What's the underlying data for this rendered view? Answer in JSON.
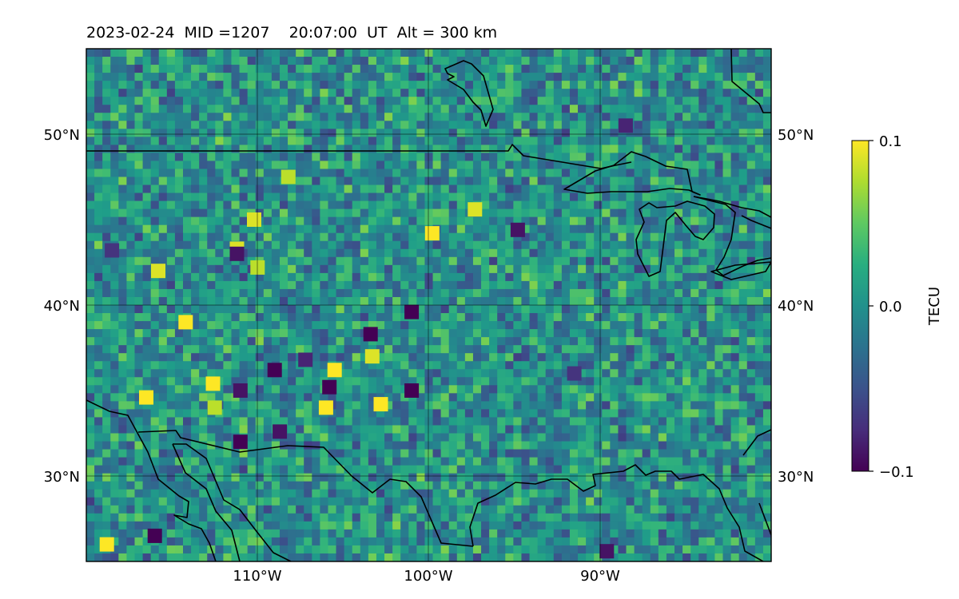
{
  "title": "2023-02-24  MID =1207    20:07:00  UT  Alt = 300 km",
  "chart_data": {
    "type": "heatmap",
    "title": "2023-02-24  MID =1207    20:07:00  UT  Alt = 300 km",
    "map": {
      "projection": "equirectangular",
      "lon_range": [
        -120,
        -80
      ],
      "lat_range": [
        25,
        55
      ],
      "lon_ticks": [
        {
          "value": -110,
          "label": "110°W"
        },
        {
          "value": -100,
          "label": "100°W"
        },
        {
          "value": -90,
          "label": "90°W"
        }
      ],
      "lat_ticks": [
        {
          "value": 50,
          "label": "50°N"
        },
        {
          "value": 40,
          "label": "40°N"
        },
        {
          "value": 30,
          "label": "30°N"
        }
      ],
      "grid": true
    },
    "colorbar": {
      "label": "TECU",
      "colormap": "viridis",
      "range": [
        -0.1,
        0.1
      ],
      "ticks": [
        {
          "value": 0.1,
          "label": "0.1"
        },
        {
          "value": 0.0,
          "label": "0.0"
        },
        {
          "value": -0.1,
          "label": "−0.1"
        }
      ]
    },
    "features": {
      "positive_patches": [
        {
          "lon": -110.2,
          "lat": 45.0,
          "value": 0.09
        },
        {
          "lon": -110.0,
          "lat": 42.2,
          "value": 0.08
        },
        {
          "lon": -111.2,
          "lat": 43.3,
          "value": 0.09
        },
        {
          "lon": -115.8,
          "lat": 42.0,
          "value": 0.09
        },
        {
          "lon": -114.2,
          "lat": 39.0,
          "value": 0.1
        },
        {
          "lon": -105.5,
          "lat": 36.2,
          "value": 0.1
        },
        {
          "lon": -106.0,
          "lat": 34.0,
          "value": 0.1
        },
        {
          "lon": -102.8,
          "lat": 34.2,
          "value": 0.1
        },
        {
          "lon": -103.3,
          "lat": 37.0,
          "value": 0.09
        },
        {
          "lon": -99.8,
          "lat": 44.2,
          "value": 0.1
        },
        {
          "lon": -97.3,
          "lat": 45.6,
          "value": 0.09
        },
        {
          "lon": -116.5,
          "lat": 34.6,
          "value": 0.1
        },
        {
          "lon": -112.5,
          "lat": 34.0,
          "value": 0.08
        },
        {
          "lon": -118.8,
          "lat": 26.0,
          "value": 0.1
        },
        {
          "lon": -108.2,
          "lat": 47.5,
          "value": 0.08
        },
        {
          "lon": -112.6,
          "lat": 35.4,
          "value": 0.1
        }
      ],
      "negative_patches": [
        {
          "lon": -103.4,
          "lat": 38.3,
          "value": -0.1
        },
        {
          "lon": -101.0,
          "lat": 39.6,
          "value": -0.1
        },
        {
          "lon": -105.8,
          "lat": 35.2,
          "value": -0.1
        },
        {
          "lon": -101.0,
          "lat": 35.0,
          "value": -0.1
        },
        {
          "lon": -109.0,
          "lat": 36.2,
          "value": -0.1
        },
        {
          "lon": -111.0,
          "lat": 32.0,
          "value": -0.1
        },
        {
          "lon": -116.0,
          "lat": 26.5,
          "value": -0.1
        },
        {
          "lon": -108.7,
          "lat": 32.6,
          "value": -0.09
        },
        {
          "lon": -111.2,
          "lat": 43.0,
          "value": -0.09
        },
        {
          "lon": -94.8,
          "lat": 44.4,
          "value": -0.09
        },
        {
          "lon": -89.6,
          "lat": 25.6,
          "value": -0.09
        },
        {
          "lon": -111.0,
          "lat": 35.0,
          "value": -0.09
        },
        {
          "lon": -88.5,
          "lat": 50.5,
          "value": -0.08
        },
        {
          "lon": -107.2,
          "lat": 36.8,
          "value": -0.08
        },
        {
          "lon": -91.5,
          "lat": 36.0,
          "value": -0.07
        },
        {
          "lon": -118.5,
          "lat": 43.2,
          "value": -0.07
        }
      ]
    }
  }
}
